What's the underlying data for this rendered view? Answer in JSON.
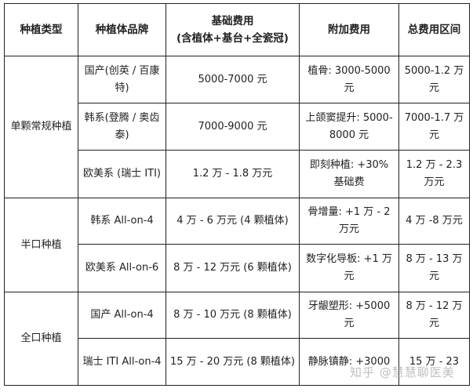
{
  "header": {
    "type": "种植类型",
    "brand": "种植体品牌",
    "base_line1": "基础费用",
    "base_line2": "(含植体+基台+全瓷冠)",
    "extra": "附加费用",
    "total": "总费用区间"
  },
  "groups": [
    {
      "type": "单颗常规种植",
      "rows": [
        {
          "brand": "国产(创英 / 百康特)",
          "base": "5000-7000 元",
          "extra": "植骨: 3000-5000 元",
          "total": "5000-1.2 万元"
        },
        {
          "brand": "韩系(登腾 / 奥齿泰)",
          "base": "7000-9000 元",
          "extra": "上颌窦提升: 5000-8000 元",
          "total": "7000-1.7 万元"
        },
        {
          "brand": "欧美系 (瑞士 ITI)",
          "base": "1.2 万 - 1.8 万元",
          "extra": "即刻种植: +30% 基础费",
          "total": "1.2 万 - 2.3 万元"
        }
      ]
    },
    {
      "type": "半口种植",
      "rows": [
        {
          "brand": "韩系 All-on-4",
          "base": "4 万 - 6 万元 (4 颗植体)",
          "extra": "骨增量: +1 万 - 2 万元",
          "total": "4 万 -8 万元"
        },
        {
          "brand": "欧美系 All-on-6",
          "base": "8 万 - 12 万元 (6 颗植体)",
          "extra": "数字化导板: +1 万元",
          "total": "8 万 - 13 万元"
        }
      ]
    },
    {
      "type": "全口种植",
      "rows": [
        {
          "brand": "国产 All-on-4",
          "base": "8 万 - 10 万元 (8 颗植体)",
          "extra": "牙龈塑形: +5000 元",
          "total": "8 万 - 12 万元"
        },
        {
          "brand": "瑞士 ITI All-on-4",
          "base": "15 万 - 20 万元 (8 颗植体)",
          "extra": "静脉镇静: +3000",
          "total": "15 万 - 23"
        }
      ]
    }
  ],
  "watermark": "知乎 @慧慧聊医美"
}
